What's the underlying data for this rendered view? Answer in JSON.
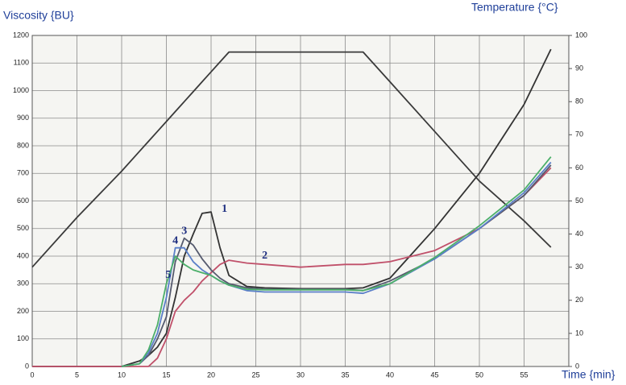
{
  "chart_data": {
    "type": "line",
    "ylabel": "Viscosity {BU}",
    "y2label": "Temperature {°C}",
    "xlabel": "Time {min}",
    "x": [
      0,
      5,
      10,
      12,
      13,
      14,
      15,
      16,
      17,
      18,
      19,
      20,
      21,
      22,
      24,
      26,
      30,
      35,
      37,
      40,
      45,
      50,
      55,
      58
    ],
    "series": [
      {
        "color": "#3a3a3a",
        "axis": "y2",
        "values": [
          30,
          45,
          59,
          65,
          68,
          71,
          74,
          77,
          80,
          83,
          86,
          89,
          92,
          95,
          95,
          95,
          95,
          95,
          95,
          86,
          71,
          56,
          44,
          36
        ]
      },
      {
        "color": "#333333",
        "values": [
          0,
          0,
          0,
          20,
          40,
          70,
          120,
          250,
          400,
          480,
          555,
          560,
          430,
          330,
          290,
          285,
          282,
          282,
          285,
          320,
          500,
          700,
          950,
          1150
        ]
      },
      {
        "color": "#c0506a",
        "values": [
          0,
          0,
          0,
          0,
          0,
          30,
          100,
          200,
          240,
          270,
          310,
          340,
          370,
          385,
          375,
          370,
          360,
          370,
          370,
          380,
          420,
          500,
          620,
          720
        ]
      },
      {
        "color": "#555a6e",
        "values": [
          null,
          null,
          0,
          10,
          40,
          100,
          180,
          380,
          465,
          440,
          390,
          350,
          320,
          300,
          285,
          280,
          280,
          280,
          275,
          310,
          390,
          500,
          620,
          730
        ]
      },
      {
        "color": "#5a7fc8",
        "values": [
          null,
          null,
          0,
          10,
          50,
          120,
          250,
          430,
          430,
          380,
          350,
          330,
          310,
          295,
          275,
          270,
          270,
          270,
          265,
          300,
          390,
          500,
          630,
          740
        ]
      },
      {
        "color": "#4caf6a",
        "values": [
          null,
          null,
          0,
          10,
          60,
          150,
          300,
          400,
          370,
          350,
          340,
          330,
          310,
          295,
          280,
          278,
          278,
          278,
          275,
          300,
          395,
          510,
          640,
          760
        ]
      }
    ],
    "annotations": [
      {
        "text": "1",
        "x": 21.5,
        "y": 570
      },
      {
        "text": "2",
        "x": 26,
        "y": 400
      },
      {
        "text": "3",
        "x": 17,
        "y": 490
      },
      {
        "text": "4",
        "x": 16,
        "y": 455
      },
      {
        "text": "5",
        "x": 15.2,
        "y": 330
      }
    ],
    "xlim": [
      0,
      60
    ],
    "xticks": [
      0,
      5,
      10,
      15,
      20,
      25,
      30,
      35,
      40,
      45,
      50,
      55
    ],
    "ylim": [
      0,
      1200
    ],
    "yticks": [
      0,
      100,
      200,
      300,
      400,
      500,
      600,
      700,
      800,
      900,
      1000,
      1100,
      1200
    ],
    "y2lim": [
      0,
      100
    ],
    "y2ticks": [
      0,
      10,
      20,
      30,
      40,
      50,
      60,
      70,
      80,
      90,
      100
    ],
    "grid": true
  }
}
